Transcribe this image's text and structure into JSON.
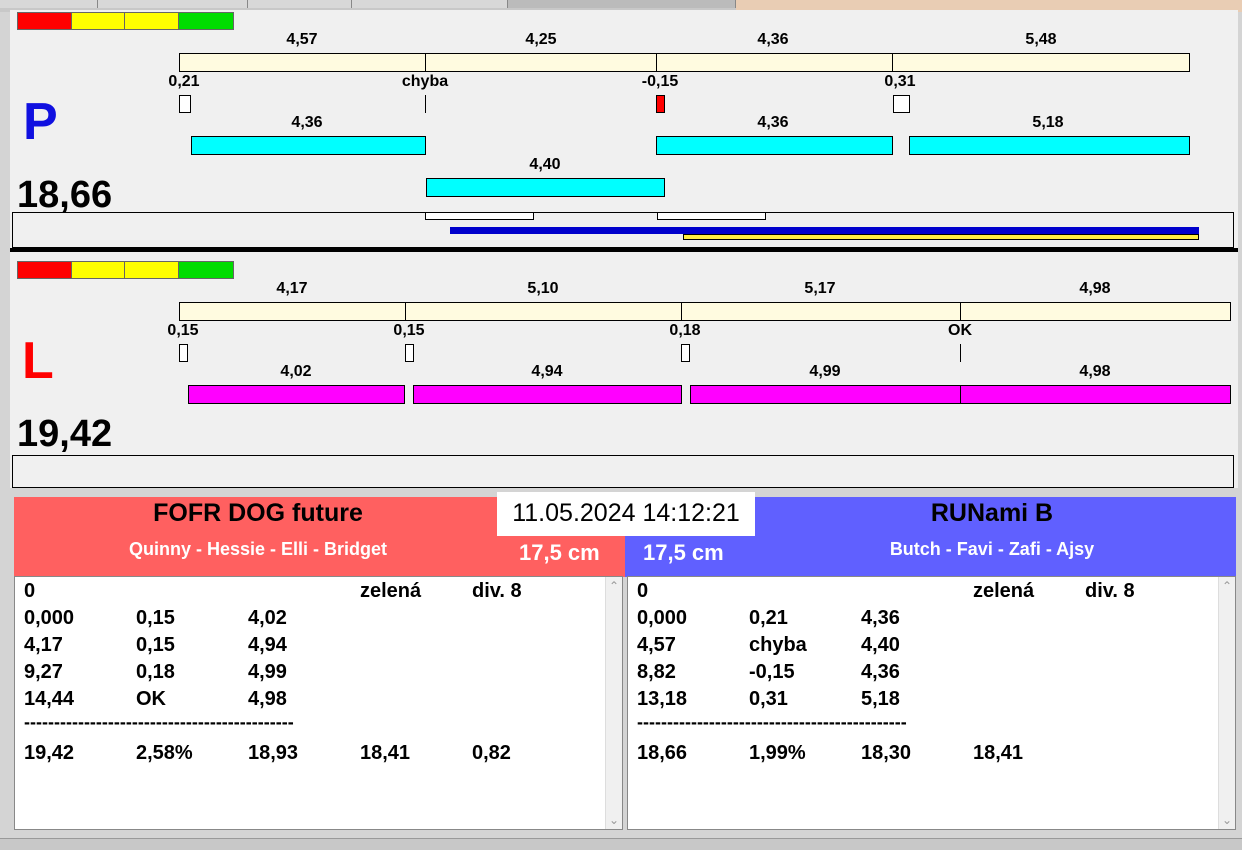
{
  "colors": {
    "traffic_red": "#ff0000",
    "traffic_yellow": "#ffff00",
    "traffic_green": "#00dd00",
    "cream": "#fffbe0",
    "cyan": "#00ffff",
    "magenta": "#ff00ff",
    "lane_p": "#1010e0",
    "lane_l": "#ff0000",
    "team_left": "#ff6060",
    "team_right": "#6060ff",
    "progress_blue": "#0000cc",
    "progress_yellow": "#ffee44"
  },
  "lane_p": {
    "letter": "P",
    "total": "18,66",
    "split_labels": [
      "4,57",
      "4,25",
      "4,36",
      "5,48"
    ],
    "reaction_labels": [
      "0,21",
      "chyba",
      "-0,15",
      "0,31"
    ],
    "dog_labels": [
      "4,36",
      "4,40",
      "4,36",
      "5,18"
    ]
  },
  "lane_l": {
    "letter": "L",
    "total": "19,42",
    "split_labels": [
      "4,17",
      "5,10",
      "5,17",
      "4,98"
    ],
    "reaction_labels": [
      "0,15",
      "0,15",
      "0,18",
      "OK"
    ],
    "dog_labels": [
      "4,02",
      "4,94",
      "4,99",
      "4,98"
    ]
  },
  "datetime": "11.05.2024 14:12:21",
  "team_left": {
    "name": "FOFR DOG future",
    "dogs": "Quinny - Hessie - Elli - Bridget",
    "height": "17,5 cm",
    "results_header": [
      "0",
      "zelená",
      "div. 8"
    ],
    "rows": [
      [
        "0,000",
        "0,15",
        "4,02"
      ],
      [
        "4,17",
        "0,15",
        "4,94"
      ],
      [
        "9,27",
        "0,18",
        "4,99"
      ],
      [
        "14,44",
        "OK",
        "4,98"
      ]
    ],
    "separator": "---------------------------------------------",
    "summary": [
      "19,42",
      "2,58%",
      "18,93",
      "18,41",
      "0,82"
    ]
  },
  "team_right": {
    "name": "RUNami B",
    "dogs": "Butch - Favi - Zafi - Ajsy",
    "height": "17,5 cm",
    "results_header": [
      "0",
      "zelená",
      "div. 8"
    ],
    "rows": [
      [
        "0,000",
        "0,21",
        "4,36"
      ],
      [
        "4,57",
        "chyba",
        "4,40"
      ],
      [
        "8,82",
        "-0,15",
        "4,36"
      ],
      [
        "13,18",
        "0,31",
        "5,18"
      ]
    ],
    "separator": "---------------------------------------------",
    "summary": [
      "18,66",
      "1,99%",
      "18,30",
      "18,41"
    ]
  },
  "icons": {
    "scroll_up": "scroll-up-arrow-icon",
    "scroll_down": "scroll-down-arrow-icon"
  }
}
